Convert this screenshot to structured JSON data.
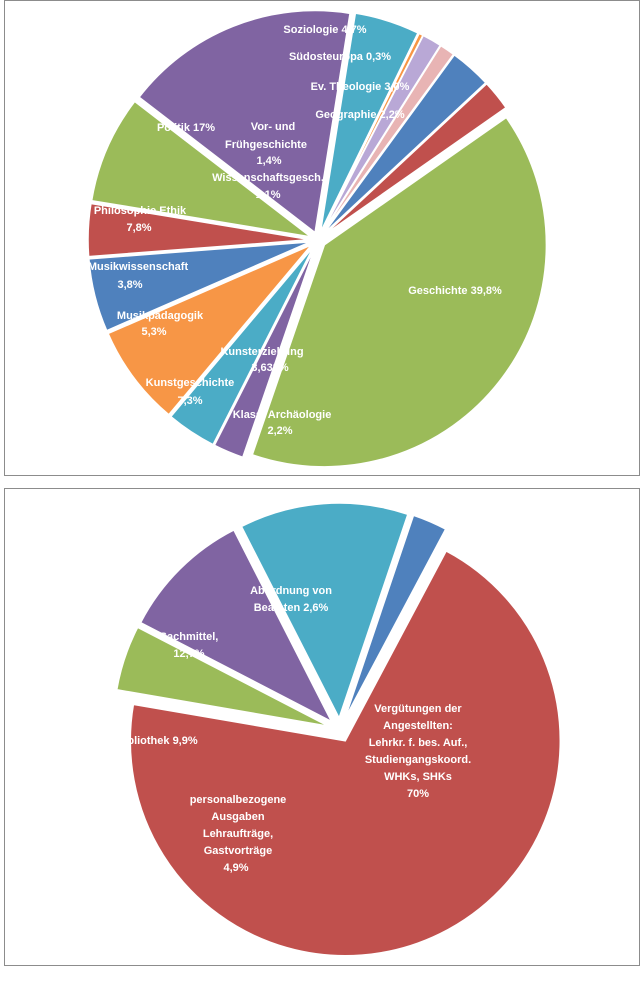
{
  "colors": {
    "purple": "#8064a2",
    "teal": "#4bacc6",
    "orange": "#f79646",
    "blue": "#4f81bd",
    "red": "#c0504d",
    "green": "#9bbb59",
    "pink": "#e8b4b4",
    "lilac": "#b9a8d6"
  },
  "chart_data": [
    {
      "type": "pie",
      "title": "",
      "legend": "none",
      "slices": [
        {
          "label": "Geschichte 39,8%",
          "value": 39.8,
          "color": "#9bbb59",
          "exploded": true
        },
        {
          "label": "Klass. Archäologie 2,2%",
          "value": 2.2,
          "color": "#8064a2",
          "exploded": true
        },
        {
          "label": "Kunsterziehung 3,63...%",
          "value": 3.63,
          "color": "#4bacc6",
          "exploded": true
        },
        {
          "label": "Kunstgeschichte 7,3%",
          "value": 7.3,
          "color": "#f79646",
          "exploded": true
        },
        {
          "label": "Musikpädagogik 5,3%",
          "value": 5.3,
          "color": "#4f81bd",
          "exploded": true
        },
        {
          "label": "Musikwissenschaft 3,8%",
          "value": 3.8,
          "color": "#c0504d",
          "exploded": true
        },
        {
          "label": "Philosophie Ethik 7,8%",
          "value": 7.8,
          "color": "#9bbb59",
          "exploded": true
        },
        {
          "label": "Politik 17%",
          "value": 17.0,
          "color": "#8064a2",
          "exploded": true
        },
        {
          "label": "Soziologie 4,7%",
          "value": 4.7,
          "color": "#4bacc6",
          "exploded": true
        },
        {
          "label": "Südosteuropa 0,3%",
          "value": 0.3,
          "color": "#f79646",
          "exploded": true
        },
        {
          "label": "Vor- und Frühgeschichte 1,4%",
          "value": 1.4,
          "color": "#b9a8d6",
          "exploded": true
        },
        {
          "label": "Wissenschaftsgesch. 1,1%",
          "value": 1.1,
          "color": "#e8b4b4",
          "exploded": true
        },
        {
          "label": "Ev. Theologie 3,0%",
          "value": 3.0,
          "color": "#4f81bd",
          "exploded": true
        },
        {
          "label": "Geographie 2,2%",
          "value": 2.2,
          "color": "#c0504d",
          "exploded": true
        }
      ]
    },
    {
      "type": "pie",
      "title": "",
      "legend": "none",
      "slices": [
        {
          "label": "Vergütungen der Angestellten: Lehrkr. f. bes. Auf., Studiengangskoord. WHKs, SHKs 70%",
          "value": 70,
          "color": "#c0504d",
          "exploded": true
        },
        {
          "label": "personalbezogene Ausgaben Lehraufträge, Gastvorträge 4,9%",
          "value": 4.9,
          "color": "#9bbb59",
          "exploded": true
        },
        {
          "label": "Bibliothek 9,9%",
          "value": 9.9,
          "color": "#8064a2",
          "exploded": true
        },
        {
          "label": "Sachmittel, 12,7%",
          "value": 12.7,
          "color": "#4bacc6",
          "exploded": true
        },
        {
          "label": "Abordnung von Beamten 2,6%",
          "value": 2.6,
          "color": "#4f81bd",
          "exploded": true
        }
      ]
    }
  ],
  "labels1": {
    "geschichte": "Geschichte 39,8%",
    "klass_l1": "Klass. Archäologie",
    "klass_l2": "2,2%",
    "kunsterz_l1": "Kunsterziehung",
    "kunsterz_l2": "3,632%",
    "kunstgesch_l1": "Kunstgeschichte",
    "kunstgesch_l2": "7,3%",
    "musikpaed_l1": "Musikpädagogik",
    "musikpaed_l2": "5,3%",
    "musikwiss_l1": "Musikwissenschaft",
    "musikwiss_l2": "3,8%",
    "philo_l1": "Philosophie Ethik",
    "philo_l2": "7,8%",
    "politik": "Politik 17%",
    "soziologie": "Soziologie 4,7%",
    "suedost": "Südosteuropa 0,3%",
    "evtheo": "Ev. Theologie 3,0%",
    "geographie": "Geographie 2,2%",
    "vorfrueh_l1": "Vor- und",
    "vorfrueh_l2": "Frühgeschichte",
    "vorfrueh_l3": "1,4%",
    "wiss_l1": "Wissenschaftsgesch.",
    "wiss_l2": "1,1%"
  },
  "labels2": {
    "verg_l1": "Vergütungen der",
    "verg_l2": "Angestellten:",
    "verg_l3": "Lehrkr. f. bes. Auf.,",
    "verg_l4": "Studiengangskoord.",
    "verg_l5": "WHKs, SHKs",
    "verg_l6": "70%",
    "pers_l1": "personalbezogene",
    "pers_l2": "Ausgaben",
    "pers_l3": "Lehraufträge,",
    "pers_l4": "Gastvorträge",
    "pers_l5": "4,9%",
    "biblio": "Bibliothek 9,9%",
    "sach_l1": "Sachmittel,",
    "sach_l2": "12,7%",
    "abord_l1": "Abordnung von",
    "abord_l2": "Beamten 2,6%"
  }
}
